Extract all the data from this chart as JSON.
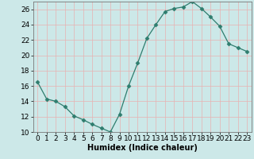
{
  "x": [
    0,
    1,
    2,
    3,
    4,
    5,
    6,
    7,
    8,
    9,
    10,
    11,
    12,
    13,
    14,
    15,
    16,
    17,
    18,
    19,
    20,
    21,
    22,
    23
  ],
  "y": [
    16.5,
    14.3,
    14.0,
    13.3,
    12.1,
    11.6,
    11.0,
    10.5,
    10.0,
    12.3,
    16.0,
    19.0,
    22.2,
    24.0,
    25.7,
    26.1,
    26.3,
    27.0,
    26.1,
    25.0,
    23.8,
    21.5,
    21.0,
    20.5
  ],
  "xlabel": "Humidex (Indice chaleur)",
  "ylim": [
    10,
    27
  ],
  "xlim": [
    -0.5,
    23.5
  ],
  "yticks": [
    10,
    12,
    14,
    16,
    18,
    20,
    22,
    24,
    26
  ],
  "xticks": [
    0,
    1,
    2,
    3,
    4,
    5,
    6,
    7,
    8,
    9,
    10,
    11,
    12,
    13,
    14,
    15,
    16,
    17,
    18,
    19,
    20,
    21,
    22,
    23
  ],
  "line_color": "#2e7d6e",
  "marker": "D",
  "marker_size": 2.5,
  "bg_color": "#cce8e8",
  "grid_color_major": "#e8b0b0",
  "grid_color_minor": "#d4e8e8",
  "xlabel_fontsize": 7,
  "tick_fontsize": 6.5
}
